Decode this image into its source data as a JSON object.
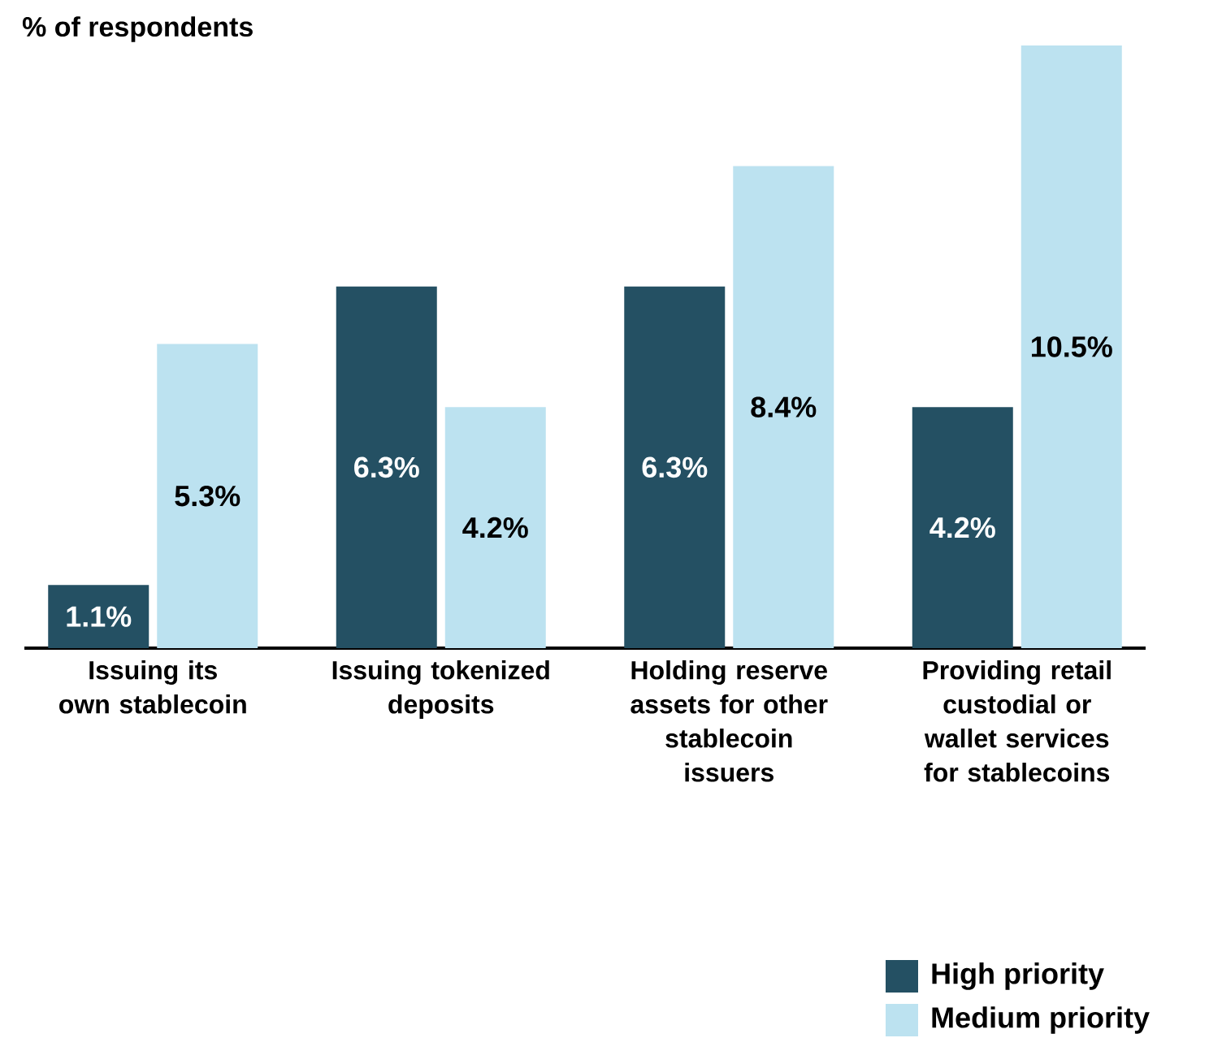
{
  "chart_data": {
    "type": "bar",
    "ylabel": "% of respondents",
    "legend": "bottom right",
    "categories": [
      "Issuing its own stablecoin",
      "Issuing tokenized deposits",
      "Holding reserve assets for other stablecoin issuers",
      "Providing retail custodial or wallet services for stablecoins"
    ],
    "series": [
      {
        "name": "High priority",
        "color": "#245063",
        "values": [
          1.1,
          6.3,
          6.3,
          4.2
        ],
        "value_labels": [
          "1.1%",
          "6.3%",
          "6.3%",
          "4.2%"
        ]
      },
      {
        "name": "Medium priority",
        "color": "#bce2f0",
        "values": [
          5.3,
          4.2,
          8.4,
          10.5
        ],
        "value_labels": [
          "5.3%",
          "4.2%",
          "8.4%",
          "10.5%"
        ]
      }
    ]
  }
}
